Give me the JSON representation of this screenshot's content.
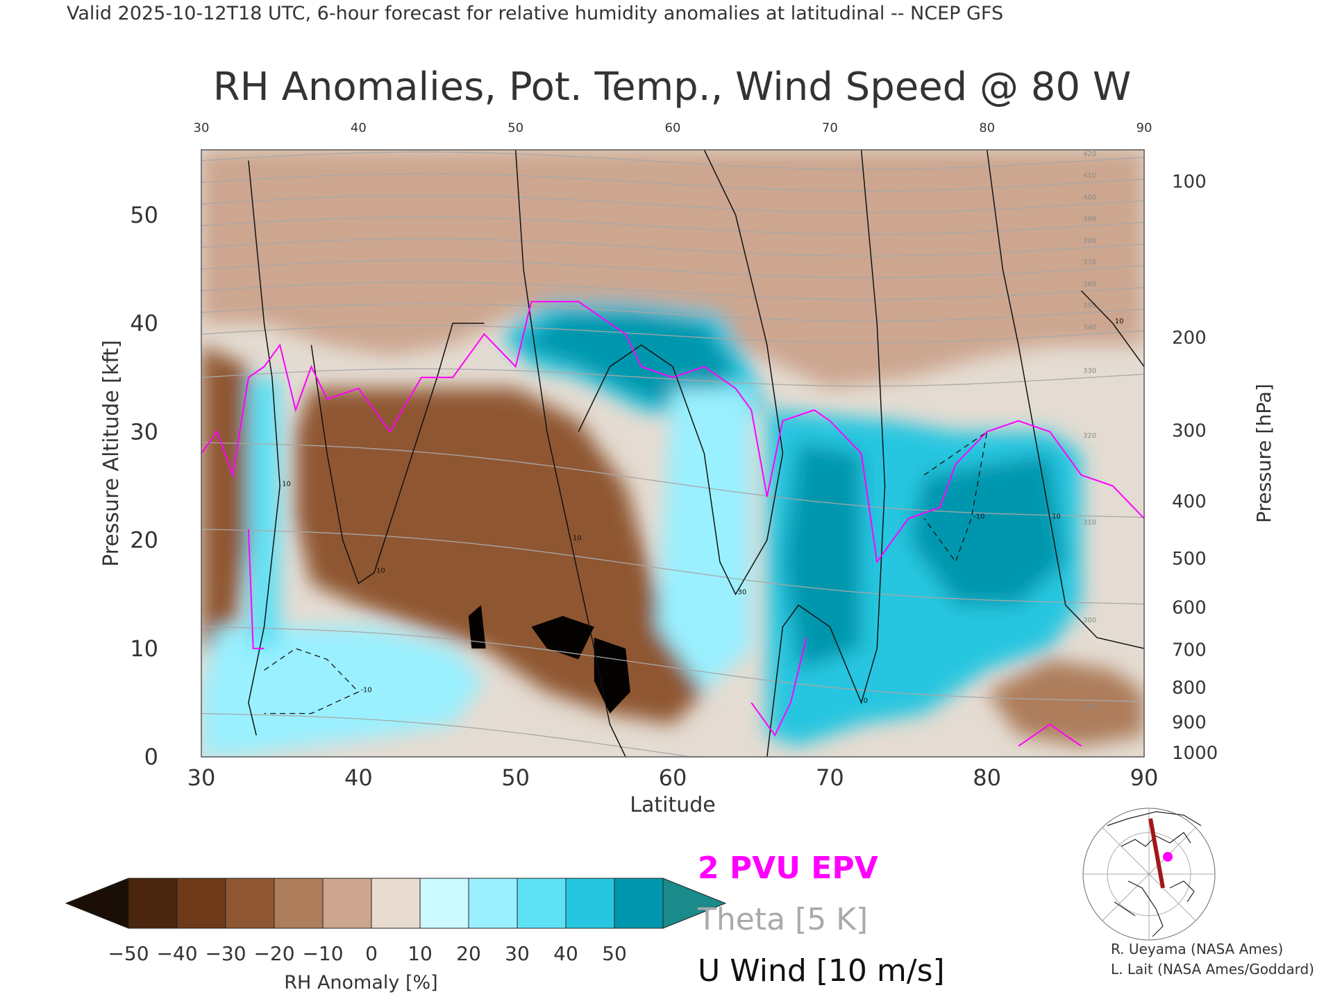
{
  "header": {
    "valid_line": "Valid 2025-10-12T18 UTC, 6-hour forecast for relative humidity anomalies at latitudinal -- NCEP GFS",
    "title": "RH Anomalies, Pot. Temp., Wind Speed @ 80 W"
  },
  "chart_data": {
    "type": "heatmap",
    "title": "RH Anomalies, Pot. Temp., Wind Speed @ 80 W",
    "xlabel": "Latitude",
    "ylabel": "Pressure Altitude [kft]",
    "ylabel_right": "Pressure [hPa]",
    "xlim": [
      30,
      90
    ],
    "ylim": [
      0,
      56
    ],
    "x_ticks": [
      "30",
      "40",
      "50",
      "60",
      "70",
      "80",
      "90"
    ],
    "y_ticks": [
      "0",
      "10",
      "20",
      "30",
      "40",
      "50"
    ],
    "pressure_ticks": [
      {
        "label": "100",
        "kft": 53.1
      },
      {
        "label": "200",
        "kft": 38.7
      },
      {
        "label": "300",
        "kft": 30.1
      },
      {
        "label": "400",
        "kft": 23.6
      },
      {
        "label": "500",
        "kft": 18.3
      },
      {
        "label": "600",
        "kft": 13.8
      },
      {
        "label": "700",
        "kft": 9.9
      },
      {
        "label": "800",
        "kft": 6.4
      },
      {
        "label": "900",
        "kft": 3.2
      },
      {
        "label": "1000",
        "kft": 0.4
      }
    ],
    "regions": [
      {
        "name": "upper-dry",
        "value": -15,
        "poly": [
          [
            30,
            56
          ],
          [
            90,
            56
          ],
          [
            90,
            38
          ],
          [
            84,
            38
          ],
          [
            80,
            37
          ],
          [
            75,
            35
          ],
          [
            70,
            34
          ],
          [
            64,
            38
          ],
          [
            56,
            41
          ],
          [
            50,
            41
          ],
          [
            46,
            38
          ],
          [
            42,
            37
          ],
          [
            38,
            38
          ],
          [
            34,
            40
          ],
          [
            30,
            40
          ]
        ]
      },
      {
        "name": "tropopause-moist",
        "value": 40,
        "poly": [
          [
            49,
            39
          ],
          [
            52,
            42
          ],
          [
            57,
            42
          ],
          [
            63,
            41
          ],
          [
            65,
            36
          ],
          [
            66,
            32
          ],
          [
            63,
            31
          ],
          [
            58,
            32
          ],
          [
            54,
            35
          ],
          [
            51,
            36
          ]
        ]
      },
      {
        "name": "tropopause-very-moist",
        "value": 50,
        "poly": [
          [
            50,
            38
          ],
          [
            53,
            41
          ],
          [
            58,
            41
          ],
          [
            62,
            40
          ],
          [
            64,
            36
          ],
          [
            62,
            32
          ],
          [
            58,
            33
          ],
          [
            54,
            36
          ]
        ]
      },
      {
        "name": "mid-dry-core",
        "value": -35,
        "poly": [
          [
            37,
            34
          ],
          [
            46,
            34
          ],
          [
            50,
            34
          ],
          [
            54,
            31
          ],
          [
            57,
            25
          ],
          [
            59,
            15
          ],
          [
            62,
            6
          ],
          [
            60,
            3
          ],
          [
            56,
            4
          ],
          [
            52,
            6
          ],
          [
            48,
            10
          ],
          [
            44,
            12
          ],
          [
            40,
            14
          ],
          [
            37,
            16
          ],
          [
            36,
            22
          ],
          [
            36,
            30
          ]
        ]
      },
      {
        "name": "mid-dry-west",
        "value": -30,
        "poly": [
          [
            30,
            38
          ],
          [
            33,
            36
          ],
          [
            33,
            20
          ],
          [
            32,
            10
          ],
          [
            30,
            10
          ]
        ]
      },
      {
        "name": "lower-moist-west",
        "value": 20,
        "poly": [
          [
            31,
            12
          ],
          [
            35,
            12
          ],
          [
            41,
            12
          ],
          [
            46,
            10
          ],
          [
            48,
            7
          ],
          [
            46,
            3
          ],
          [
            42,
            2
          ],
          [
            37,
            1
          ],
          [
            32,
            0
          ],
          [
            30,
            0
          ],
          [
            30,
            6
          ]
        ]
      },
      {
        "name": "moist-column-1",
        "value": 25,
        "poly": [
          [
            33,
            35
          ],
          [
            35,
            35
          ],
          [
            35,
            10
          ],
          [
            33,
            10
          ]
        ]
      },
      {
        "name": "moist-column-2",
        "value": 15,
        "poly": [
          [
            60,
            34
          ],
          [
            65,
            34
          ],
          [
            65,
            10
          ],
          [
            62,
            6
          ],
          [
            59,
            12
          ]
        ]
      },
      {
        "name": "moist-east",
        "value": 35,
        "poly": [
          [
            66,
            32
          ],
          [
            74,
            31
          ],
          [
            78,
            30
          ],
          [
            84,
            30
          ],
          [
            86,
            28
          ],
          [
            86,
            14
          ],
          [
            84,
            10
          ],
          [
            80,
            8
          ],
          [
            76,
            4
          ],
          [
            72,
            3
          ],
          [
            68,
            1
          ],
          [
            66,
            2
          ]
        ]
      },
      {
        "name": "moist-east-core",
        "value": 45,
        "poly": [
          [
            68,
            29
          ],
          [
            72,
            28
          ],
          [
            72,
            10
          ],
          [
            68,
            8
          ],
          [
            67,
            18
          ]
        ]
      },
      {
        "name": "moist-east-core-2",
        "value": 45,
        "poly": [
          [
            76,
            26
          ],
          [
            84,
            28
          ],
          [
            85,
            18
          ],
          [
            82,
            14
          ],
          [
            78,
            14
          ],
          [
            75,
            20
          ]
        ]
      },
      {
        "name": "lower-dry-east",
        "value": -20,
        "poly": [
          [
            80,
            6
          ],
          [
            84,
            9
          ],
          [
            88,
            8
          ],
          [
            90,
            6
          ],
          [
            90,
            2
          ],
          [
            86,
            1
          ],
          [
            82,
            2
          ]
        ]
      }
    ],
    "black_spots": [
      [
        [
          47,
          13
        ],
        [
          47.8,
          14
        ],
        [
          48.1,
          10
        ],
        [
          47.2,
          10
        ]
      ],
      [
        [
          51,
          12
        ],
        [
          53,
          13
        ],
        [
          55,
          12
        ],
        [
          54,
          9
        ],
        [
          52,
          10
        ]
      ],
      [
        [
          55,
          11
        ],
        [
          57,
          10
        ],
        [
          57.3,
          6
        ],
        [
          56,
          4
        ],
        [
          55,
          7
        ]
      ]
    ],
    "epv_2pvu": {
      "color": "#ff00ff",
      "points": [
        [
          30,
          28
        ],
        [
          31,
          30
        ],
        [
          32,
          26
        ],
        [
          33,
          35
        ],
        [
          34,
          36
        ],
        [
          35,
          38
        ],
        [
          36,
          32
        ],
        [
          37,
          36
        ],
        [
          38,
          33
        ],
        [
          40,
          34
        ],
        [
          42,
          30
        ],
        [
          44,
          35
        ],
        [
          46,
          35
        ],
        [
          48,
          39
        ],
        [
          50,
          36
        ],
        [
          51,
          42
        ],
        [
          54,
          42
        ],
        [
          57,
          39
        ],
        [
          58,
          36
        ],
        [
          60,
          35
        ],
        [
          62,
          36
        ],
        [
          64,
          34
        ],
        [
          65,
          32
        ],
        [
          66,
          24
        ],
        [
          67,
          31
        ],
        [
          69,
          32
        ],
        [
          70,
          31
        ],
        [
          72,
          28
        ],
        [
          73,
          18
        ],
        [
          75,
          22
        ],
        [
          77,
          23
        ],
        [
          78,
          27
        ],
        [
          80,
          30
        ],
        [
          82,
          31
        ],
        [
          84,
          30
        ],
        [
          86,
          26
        ],
        [
          88,
          25
        ],
        [
          90,
          22
        ]
      ]
    },
    "epv_low_1": {
      "color": "#ff00ff",
      "points": [
        [
          33,
          21
        ],
        [
          33.3,
          10
        ],
        [
          34,
          10
        ]
      ]
    },
    "epv_low_2": {
      "color": "#ff00ff",
      "points": [
        [
          65,
          5
        ],
        [
          66.5,
          2
        ],
        [
          67.5,
          5
        ],
        [
          68,
          8
        ],
        [
          68.5,
          11
        ]
      ]
    },
    "epv_low_3": {
      "color": "#ff00ff",
      "points": [
        [
          82,
          1
        ],
        [
          84,
          3
        ],
        [
          86,
          1
        ]
      ]
    },
    "theta_levels": [
      {
        "label": "290",
        "base": 4
      },
      {
        "label": "300",
        "base": 12
      },
      {
        "label": "310",
        "base": 21
      },
      {
        "label": "320",
        "base": 29
      },
      {
        "label": "330",
        "base": 35
      },
      {
        "label": "340",
        "base": 39
      },
      {
        "label": "350",
        "base": 41
      },
      {
        "label": "360",
        "base": 43
      },
      {
        "label": "370",
        "base": 45
      },
      {
        "label": "380",
        "base": 47
      },
      {
        "label": "390",
        "base": 49
      },
      {
        "label": "400",
        "base": 51
      },
      {
        "label": "410",
        "base": 53
      },
      {
        "label": "420",
        "base": 55
      }
    ],
    "u_wind_contours": [
      {
        "label": "10",
        "points": [
          [
            33,
            55
          ],
          [
            34,
            40
          ],
          [
            34.5,
            35
          ],
          [
            35,
            25
          ],
          [
            34,
            12
          ],
          [
            33,
            5
          ],
          [
            33.5,
            2
          ]
        ]
      },
      {
        "label": "10",
        "points": [
          [
            37,
            38
          ],
          [
            38,
            28
          ],
          [
            39,
            20
          ],
          [
            40,
            16
          ],
          [
            41,
            17
          ],
          [
            43,
            26
          ],
          [
            45,
            35
          ],
          [
            46,
            40
          ],
          [
            48,
            40
          ]
        ]
      },
      {
        "label": "10",
        "points": [
          [
            50,
            56
          ],
          [
            50.5,
            45
          ],
          [
            52,
            30
          ],
          [
            53.5,
            20
          ],
          [
            55,
            10
          ],
          [
            56,
            3
          ],
          [
            57,
            0
          ]
        ]
      },
      {
        "label": "30",
        "points": [
          [
            62,
            56
          ],
          [
            64,
            50
          ],
          [
            65,
            44
          ],
          [
            66,
            38
          ],
          [
            67,
            28
          ],
          [
            66,
            20
          ],
          [
            64,
            15
          ],
          [
            63,
            18
          ],
          [
            62,
            28
          ],
          [
            60,
            36
          ],
          [
            58,
            38
          ],
          [
            56,
            36
          ],
          [
            54,
            30
          ]
        ]
      },
      {
        "label": "0",
        "points": [
          [
            66,
            0
          ],
          [
            67,
            12
          ],
          [
            68,
            14
          ],
          [
            70,
            12
          ],
          [
            72,
            5
          ],
          [
            73,
            10
          ],
          [
            73.5,
            25
          ],
          [
            73,
            40
          ],
          [
            72,
            56
          ]
        ]
      },
      {
        "label": "10",
        "points": [
          [
            80,
            56
          ],
          [
            81,
            45
          ],
          [
            82,
            38
          ],
          [
            83,
            30
          ],
          [
            84,
            22
          ],
          [
            85,
            14
          ],
          [
            87,
            11
          ],
          [
            90,
            10
          ]
        ]
      },
      {
        "label": "10",
        "points": [
          [
            86,
            43
          ],
          [
            88,
            40
          ],
          [
            90,
            36
          ]
        ]
      }
    ],
    "u_wind_negative": [
      {
        "label": "-10",
        "points": [
          [
            34,
            8
          ],
          [
            36,
            10
          ],
          [
            38,
            9
          ],
          [
            40,
            6
          ],
          [
            37,
            4
          ],
          [
            34,
            4
          ]
        ]
      },
      {
        "label": "-10",
        "points": [
          [
            76,
            26
          ],
          [
            78,
            28
          ],
          [
            80,
            30
          ],
          [
            79,
            22
          ],
          [
            78,
            18
          ],
          [
            76,
            22
          ]
        ]
      }
    ],
    "colorbar": {
      "label": "RH Anomaly [%]",
      "ticks": [
        "−50",
        "−40",
        "−30",
        "−20",
        "−10",
        "0",
        "10",
        "20",
        "30",
        "40",
        "50"
      ],
      "colors": [
        "#1a0e07",
        "#4a260f",
        "#6e3a1a",
        "#8f5633",
        "#ad7d5c",
        "#cca68f",
        "#e8dcd0",
        "#ccf8ff",
        "#9af0ff",
        "#5fe1f5",
        "#27c6e0",
        "#0097ae",
        "#1a8a8a"
      ]
    }
  },
  "legend": {
    "epv": "2 PVU EPV",
    "theta": "Theta [5 K]",
    "uwind": "U Wind [10 m/s]",
    "epv_color": "#ff00ff",
    "theta_color": "#aaaaaa",
    "uwind_color": "#111111"
  },
  "credits": {
    "line1": "R. Ueyama (NASA Ames)",
    "line2": "L. Lait (NASA Ames/Goddard)"
  }
}
